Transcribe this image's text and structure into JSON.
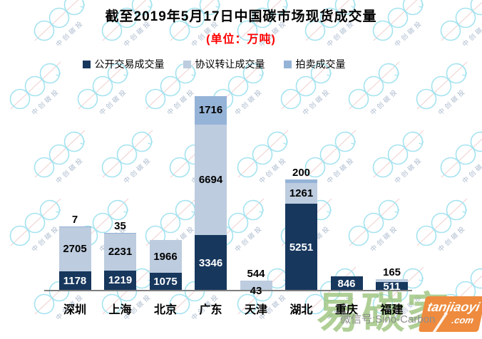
{
  "title": "截至2019年5月17日中国碳市场现货成交量",
  "subtitle": "(单位：万吨)",
  "subtitle_color": "#FF0000",
  "axis_color": "#7F7F7F",
  "chart_data": {
    "type": "bar",
    "stacked": true,
    "title": "截至2019年5月17日中国碳市场现货成交量",
    "unit_label": "万吨",
    "legend_position": "top",
    "gridlines": false,
    "categories": [
      "深圳",
      "上海",
      "北京",
      "广东",
      "天津",
      "湖北",
      "重庆",
      "福建"
    ],
    "series": [
      {
        "name": "公开交易成交量",
        "color": "#17375D",
        "values": [
          1178,
          1219,
          1075,
          3346,
          43,
          5251,
          846,
          511
        ]
      },
      {
        "name": "协议转让成交量",
        "color": "#BDCCDF",
        "values": [
          2705,
          2231,
          1966,
          6694,
          544,
          1261,
          null,
          165
        ]
      },
      {
        "name": "拍卖成交量",
        "color": "#95B3D7",
        "values": [
          7,
          35,
          null,
          1716,
          null,
          200,
          null,
          null
        ]
      }
    ],
    "totals": [
      3890,
      3485,
      3041,
      11756,
      587,
      6712,
      846,
      676
    ],
    "ylim": [
      0,
      11756
    ],
    "label_placement": [
      [
        "inside",
        "inside",
        "above"
      ],
      [
        "inside",
        "inside",
        "above"
      ],
      [
        "inside",
        "inside",
        null
      ],
      [
        "inside",
        "inside",
        "inside"
      ],
      [
        "axis",
        "above",
        null
      ],
      [
        "inside",
        "inside",
        "above"
      ],
      [
        "inside",
        null,
        null
      ],
      [
        "inside",
        "above",
        null
      ]
    ]
  },
  "watermarks": {
    "wechat_text": "微信号:Sino-Carbon",
    "brand_text": "易碳家",
    "badge_line1": "tanjiaoyi",
    "badge_line2": ".com",
    "logo_text": "中创碳投",
    "brand_color": "#9CC47C",
    "badge_color": "#EE8B3E",
    "bubble_color": "#A5E3F0"
  }
}
